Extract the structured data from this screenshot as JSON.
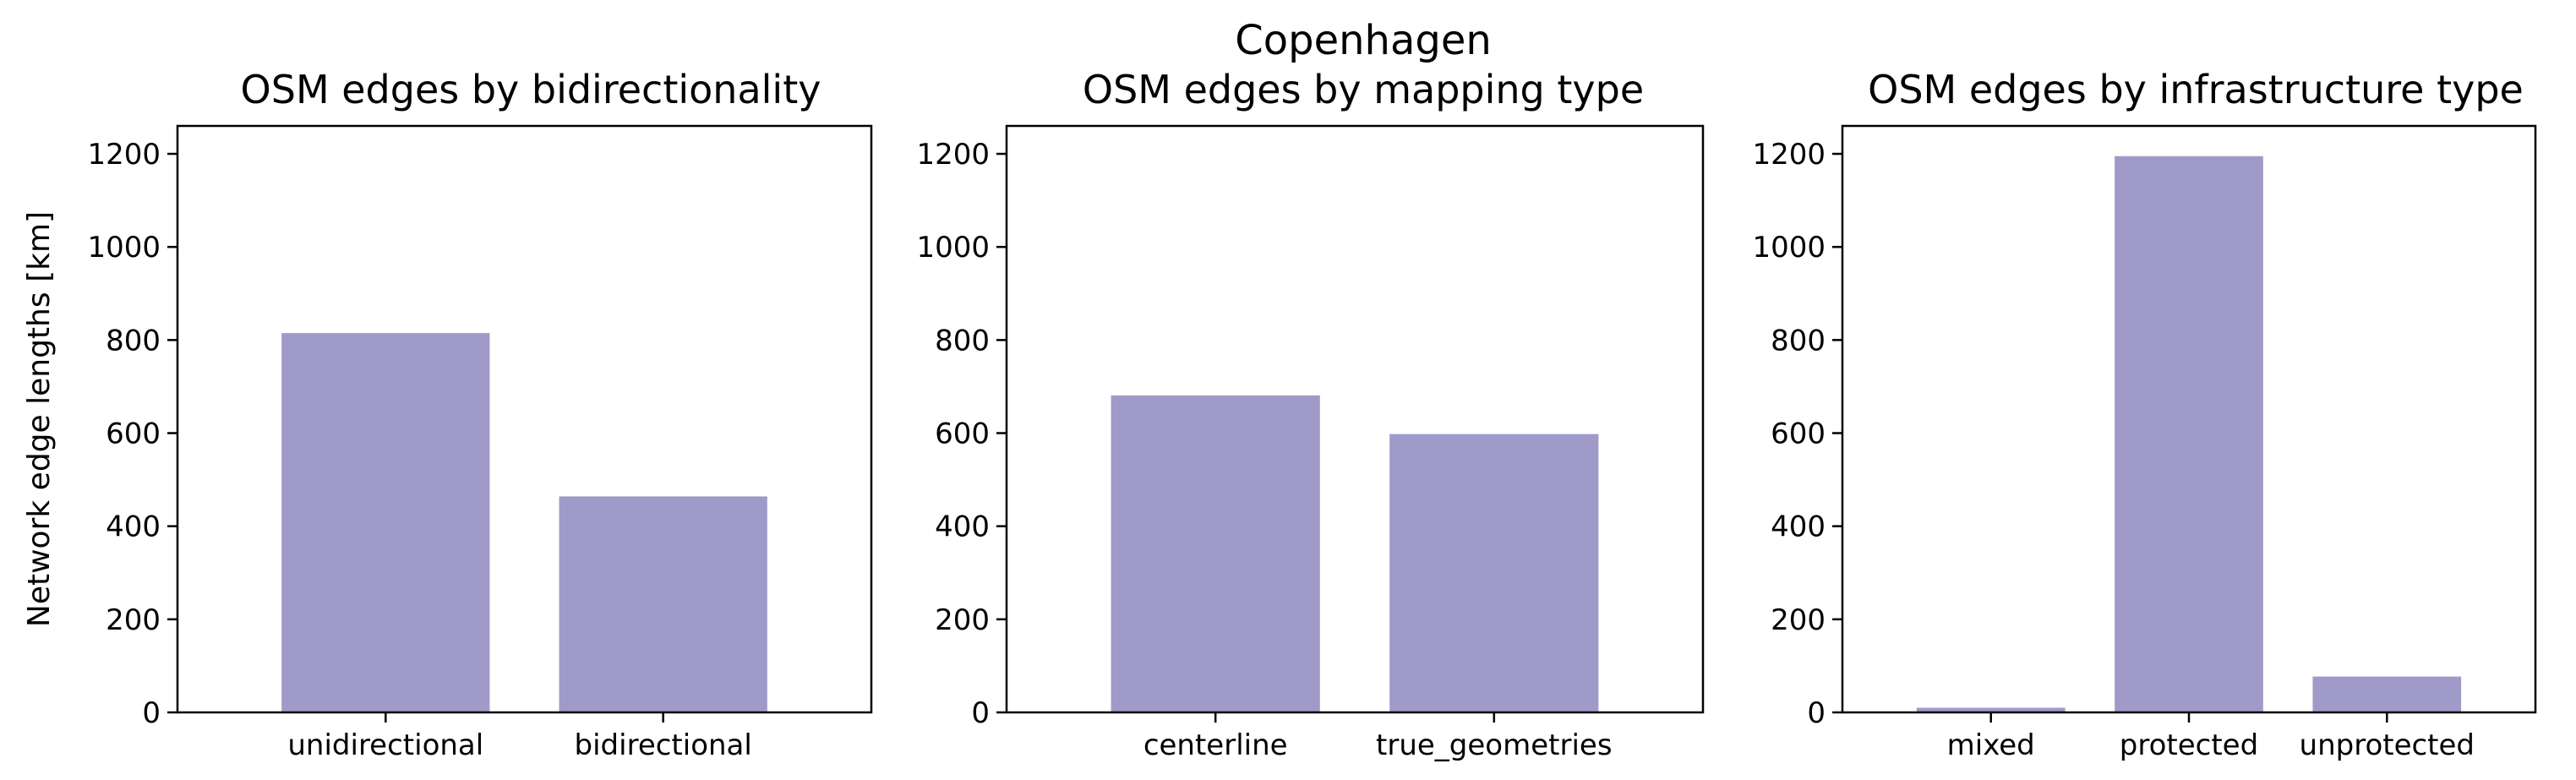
{
  "figure": {
    "suptitle": "Copenhagen",
    "ylabel": "Network edge lengths [km]",
    "bar_color": "#a09ac9"
  },
  "chart_data": [
    {
      "type": "bar",
      "title": "OSM edges by bidirectionality",
      "categories": [
        "unidirectional",
        "bidirectional"
      ],
      "values": [
        815,
        464
      ],
      "ylim": [
        0,
        1260
      ],
      "yticks": [
        0,
        200,
        400,
        600,
        800,
        1000,
        1200
      ],
      "ylabel": "Network edge lengths [km]",
      "grid": false
    },
    {
      "type": "bar",
      "title": "OSM edges by mapping type",
      "categories": [
        "centerline",
        "true_geometries"
      ],
      "values": [
        681,
        598
      ],
      "ylim": [
        0,
        1260
      ],
      "yticks": [
        0,
        200,
        400,
        600,
        800,
        1000,
        1200
      ],
      "ylabel": "",
      "grid": false
    },
    {
      "type": "bar",
      "title": "OSM edges by infrastructure type",
      "categories": [
        "mixed",
        "protected",
        "unprotected"
      ],
      "values": [
        10,
        1195,
        77
      ],
      "ylim": [
        0,
        1260
      ],
      "yticks": [
        0,
        200,
        400,
        600,
        800,
        1000,
        1200
      ],
      "ylabel": "",
      "grid": false
    }
  ]
}
